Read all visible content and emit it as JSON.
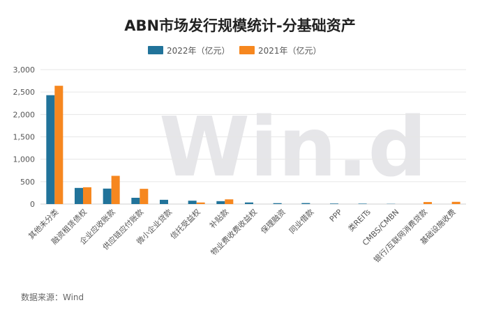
{
  "chart_data": {
    "type": "bar",
    "title": "ABN市场发行规模统计-分基础资产",
    "categories": [
      "其他未分类",
      "融资租赁债权",
      "企业应收账款",
      "供应链应付账款",
      "微小企业贷款",
      "信托受益权",
      "补贴款",
      "物业费收费收益权",
      "保理融资",
      "同业借款",
      "PPP",
      "类REITs",
      "CMBS/CMBN",
      "银行/互联网消费贷款",
      "基础设施收费"
    ],
    "series": [
      {
        "name": "2022年（亿元）",
        "color": "#21739a",
        "values": [
          2430,
          360,
          345,
          140,
          95,
          75,
          65,
          35,
          20,
          22,
          12,
          10,
          5,
          0,
          0
        ]
      },
      {
        "name": "2021年（亿元）",
        "color": "#f6871f",
        "values": [
          2640,
          375,
          630,
          340,
          0,
          35,
          105,
          0,
          0,
          0,
          0,
          0,
          0,
          45,
          50
        ]
      }
    ],
    "ylim": [
      0,
      3000
    ],
    "yticks": [
      "0",
      "500",
      "1,000",
      "1,500",
      "2,000",
      "2,500",
      "3,000"
    ],
    "ytick_values": [
      0,
      500,
      1000,
      1500,
      2000,
      2500,
      3000
    ],
    "legend_position": "top",
    "grid": true,
    "source": "数据来源：Wind",
    "watermark": "Win.d"
  }
}
